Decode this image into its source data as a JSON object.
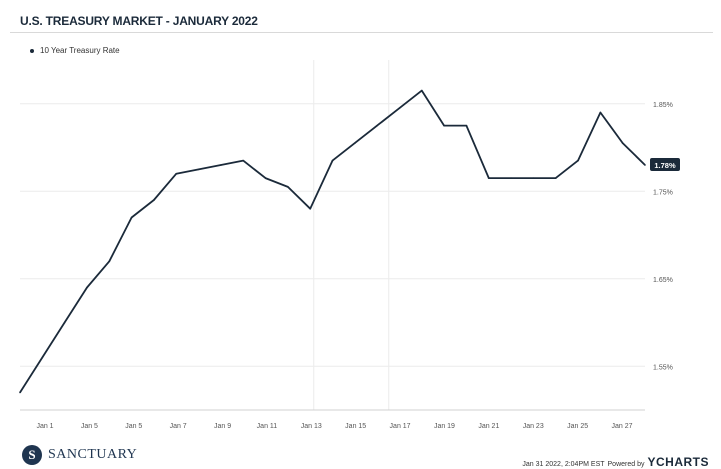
{
  "header": {
    "title": "U.S. TREASURY MARKET - JANUARY 2022"
  },
  "legend": {
    "label": "10 Year Treasury Rate"
  },
  "chart_data": {
    "type": "line",
    "title": "U.S. TREASURY MARKET - JANUARY 2022",
    "xlabel": "",
    "ylabel": "",
    "ylim": [
      1.5,
      1.9
    ],
    "grid": true,
    "legend_position": "top-left",
    "x_tick_labels": [
      "Jan 1",
      "Jan 5",
      "Jan 5",
      "Jan 7",
      "Jan 9",
      "Jan 11",
      "Jan 13",
      "Jan 15",
      "Jan 17",
      "Jan 19",
      "Jan 21",
      "Jan 23",
      "Jan 25",
      "Jan 27"
    ],
    "y_tick_labels": [
      "1.85%",
      "1.75%",
      "1.65%",
      "1.55%"
    ],
    "y_ticks": [
      1.85,
      1.75,
      1.65,
      1.55
    ],
    "last_value_label": "1.78%",
    "series": [
      {
        "name": "10 Year Treasury Rate",
        "color": "#1b2a3a",
        "x": [
          "Dec 31",
          "Jan 1",
          "Jan 2",
          "Jan 3",
          "Jan 4",
          "Jan 5",
          "Jan 6",
          "Jan 7",
          "Jan 8",
          "Jan 9",
          "Jan 10",
          "Jan 11",
          "Jan 12",
          "Jan 13",
          "Jan 14",
          "Jan 15",
          "Jan 16",
          "Jan 17",
          "Jan 18",
          "Jan 19",
          "Jan 20",
          "Jan 21",
          "Jan 22",
          "Jan 23",
          "Jan 24",
          "Jan 25",
          "Jan 26",
          "Jan 27",
          "Jan 28"
        ],
        "values": [
          1.52,
          1.56,
          1.6,
          1.64,
          1.67,
          1.72,
          1.74,
          1.77,
          1.775,
          1.78,
          1.785,
          1.765,
          1.755,
          1.73,
          1.785,
          1.805,
          1.825,
          1.845,
          1.865,
          1.825,
          1.825,
          1.765,
          1.765,
          1.765,
          1.765,
          1.785,
          1.84,
          1.805,
          1.78
        ]
      }
    ]
  },
  "footer": {
    "brand": "SANCTUARY",
    "brand_initial": "S",
    "timestamp": "Jan 31 2022, 2:04PM EST",
    "powered_by": "Powered by",
    "ycharts": "YCHARTS"
  },
  "colors": {
    "line": "#1b2a3a",
    "grid": "#ececec",
    "badge_bg": "#1b2a3a",
    "badge_text": "#ffffff"
  }
}
